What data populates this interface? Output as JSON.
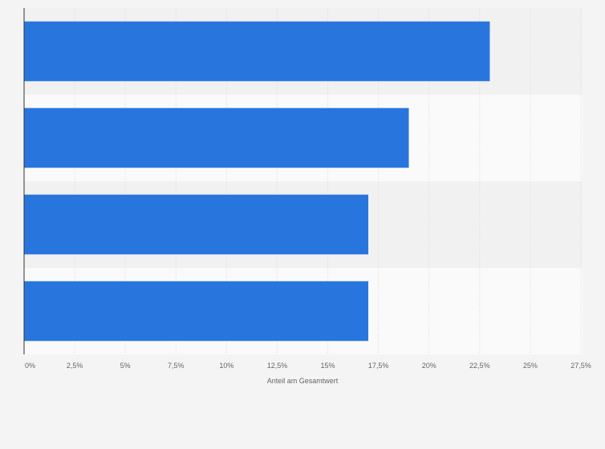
{
  "chart_data": {
    "type": "bar",
    "orientation": "horizontal",
    "categories": [
      "",
      "",
      "",
      ""
    ],
    "values": [
      23,
      19,
      17,
      17
    ],
    "title": "",
    "xlabel": "Anteil am Gesamtwert",
    "ylabel": "",
    "xlim": [
      0,
      27.5
    ],
    "xticks": [
      0,
      2.5,
      5,
      7.5,
      10,
      12.5,
      15,
      17.5,
      20,
      22.5,
      25,
      27.5
    ],
    "xtick_labels": [
      "0%",
      "2,5%",
      "5%",
      "7,5%",
      "10%",
      "12,5%",
      "15%",
      "17,5%",
      "20%",
      "22,5%",
      "25%",
      "27,5%"
    ],
    "grid": true,
    "legend": "none",
    "colors": {
      "bar": "#2876dd",
      "band_odd": "#f1f1f1",
      "band_even": "#fafafa",
      "grid": "#d8d8d8",
      "axis": "#333333",
      "text": "#666666",
      "background": "#f4f4f4"
    }
  }
}
